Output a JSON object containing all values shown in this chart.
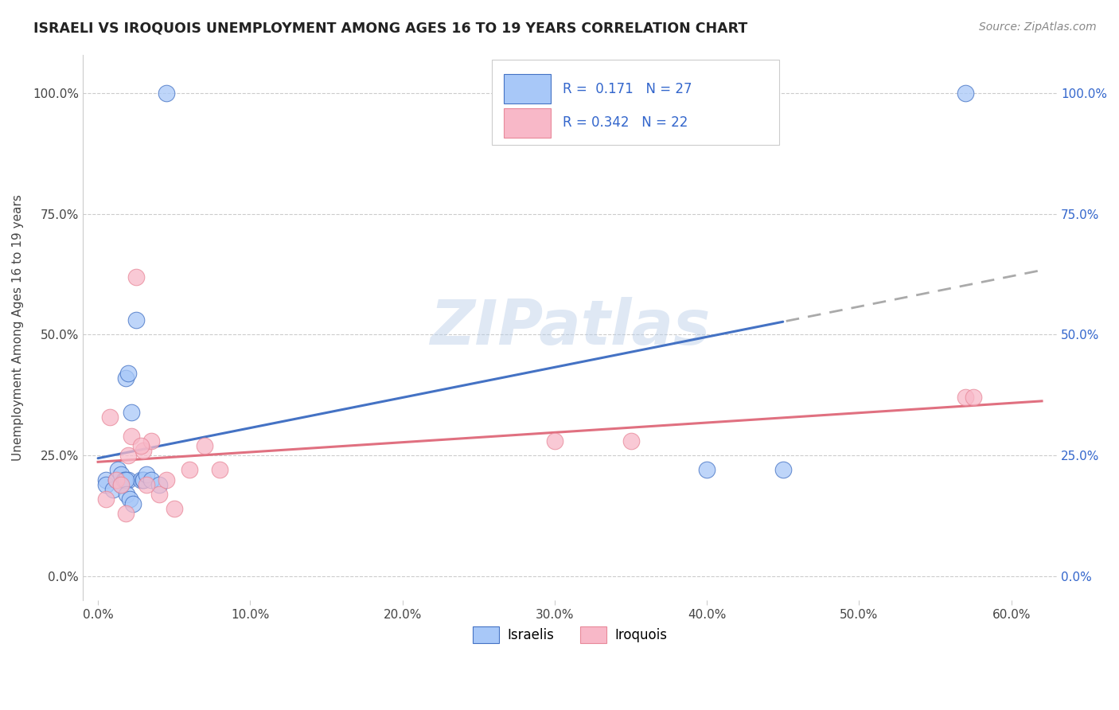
{
  "title": "ISRAELI VS IROQUOIS UNEMPLOYMENT AMONG AGES 16 TO 19 YEARS CORRELATION CHART",
  "source": "Source: ZipAtlas.com",
  "ylabel": "Unemployment Among Ages 16 to 19 years",
  "ylabel_vals": [
    0.0,
    25.0,
    50.0,
    75.0,
    100.0
  ],
  "xlabel_vals": [
    0.0,
    10.0,
    20.0,
    30.0,
    40.0,
    50.0,
    60.0
  ],
  "xlim": [
    -1.0,
    63.0
  ],
  "ylim": [
    -5.0,
    108.0
  ],
  "israeli_R": "0.171",
  "israeli_N": "27",
  "iroquois_R": "0.342",
  "iroquois_N": "22",
  "israeli_color": "#a8c8f8",
  "iroquois_color": "#f8b8c8",
  "trendline_israeli_color": "#4472c4",
  "trendline_iroquois_color": "#e07080",
  "watermark": "ZIPatlas",
  "israeli_x": [
    0.5,
    0.5,
    1.0,
    1.2,
    1.3,
    1.5,
    1.5,
    1.7,
    1.8,
    2.0,
    2.0,
    2.2,
    2.5,
    2.8,
    3.0,
    3.0,
    3.2,
    3.5,
    4.0,
    4.5,
    1.8,
    1.9,
    2.1,
    2.3,
    40.0,
    45.0,
    57.0
  ],
  "israeli_y": [
    20.0,
    19.0,
    18.0,
    20.0,
    22.0,
    19.0,
    21.0,
    20.0,
    41.0,
    42.0,
    20.0,
    34.0,
    53.0,
    20.0,
    20.0,
    20.0,
    21.0,
    20.0,
    19.0,
    100.0,
    20.0,
    17.0,
    16.0,
    15.0,
    22.0,
    22.0,
    100.0
  ],
  "iroquois_x": [
    0.8,
    1.2,
    1.5,
    1.8,
    2.0,
    2.2,
    2.5,
    3.0,
    3.5,
    4.0,
    5.0,
    6.0,
    7.0,
    8.0,
    0.5,
    2.8,
    3.2,
    4.5,
    30.0,
    35.0,
    57.0,
    57.5
  ],
  "iroquois_y": [
    33.0,
    20.0,
    19.0,
    13.0,
    25.0,
    29.0,
    62.0,
    26.0,
    28.0,
    17.0,
    14.0,
    22.0,
    27.0,
    22.0,
    16.0,
    27.0,
    19.0,
    20.0,
    28.0,
    28.0,
    37.0,
    37.0
  ]
}
